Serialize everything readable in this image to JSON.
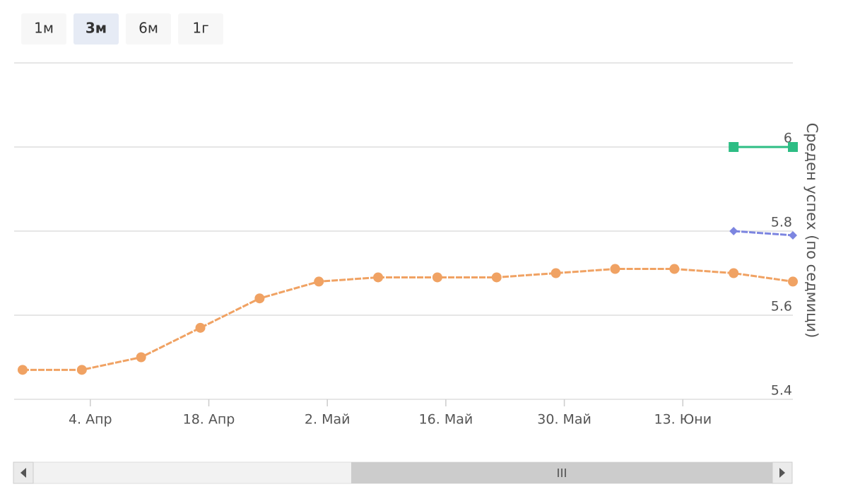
{
  "range_selector": {
    "buttons": [
      "1м",
      "3м",
      "6м",
      "1г"
    ],
    "selected": 1
  },
  "chart_data": {
    "type": "line",
    "y_axis_title": "Среден успех (по седмици)",
    "x": [
      "03-27",
      "04-03",
      "04-10",
      "04-17",
      "04-24",
      "05-01",
      "05-08",
      "05-15",
      "05-22",
      "05-29",
      "06-05",
      "06-12",
      "06-19",
      "06-26"
    ],
    "xlim": [
      "03-26",
      "06-26"
    ],
    "xticks": [
      {
        "value": "04-04",
        "label": "4. Апр"
      },
      {
        "value": "04-18",
        "label": "18. Апр"
      },
      {
        "value": "05-02",
        "label": "2. Май"
      },
      {
        "value": "05-16",
        "label": "16. Май"
      },
      {
        "value": "05-30",
        "label": "30. Май"
      },
      {
        "value": "06-13",
        "label": "13. Юни"
      }
    ],
    "ylim": [
      5.4,
      6.2
    ],
    "yticks": [
      5.4,
      5.6,
      5.8,
      6
    ],
    "grid": true,
    "series": [
      {
        "color": "#f0a263",
        "marker": "circle",
        "dashed": true,
        "values": [
          5.47,
          5.47,
          5.5,
          5.57,
          5.64,
          5.68,
          5.69,
          5.69,
          5.69,
          5.7,
          5.71,
          5.71,
          5.7,
          5.68
        ]
      },
      {
        "color": "#2dbd84",
        "marker": "square",
        "dashed": false,
        "values": [
          null,
          null,
          null,
          null,
          null,
          null,
          null,
          null,
          null,
          null,
          null,
          null,
          6,
          6
        ]
      },
      {
        "color": "#7c85e0",
        "marker": "diamond",
        "dashed": true,
        "values": [
          null,
          null,
          null,
          null,
          null,
          null,
          null,
          null,
          null,
          null,
          null,
          null,
          5.8,
          5.79
        ]
      }
    ]
  }
}
